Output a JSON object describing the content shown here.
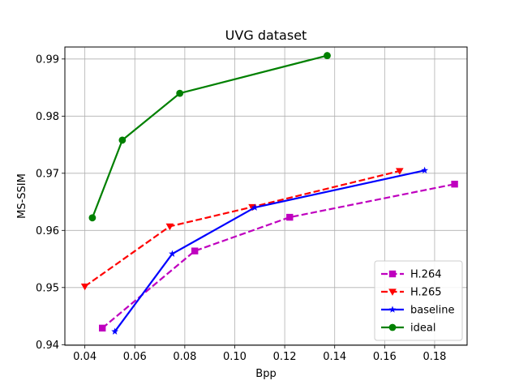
{
  "chart_data": {
    "type": "line",
    "title": "UVG dataset",
    "xlabel": "Bpp",
    "ylabel": "MS-SSIM",
    "xlim": [
      0.032,
      0.193
    ],
    "ylim": [
      0.9399,
      0.9921
    ],
    "xticks": [
      "0.04",
      "0.06",
      "0.08",
      "0.10",
      "0.12",
      "0.14",
      "0.16",
      "0.18"
    ],
    "yticks": [
      "0.94",
      "0.95",
      "0.96",
      "0.97",
      "0.98",
      "0.99"
    ],
    "grid": true,
    "legend_position": "lower-right",
    "series": [
      {
        "name": "H.264",
        "color": "#bf00bf",
        "linestyle": "dashed",
        "marker": "square",
        "x": [
          0.047,
          0.084,
          0.122,
          0.188
        ],
        "y": [
          0.9429,
          0.9564,
          0.9623,
          0.9681
        ]
      },
      {
        "name": "H.265",
        "color": "#ff0000",
        "linestyle": "dashed",
        "marker": "triangle-down",
        "x": [
          0.04,
          0.074,
          0.107,
          0.166
        ],
        "y": [
          0.9502,
          0.9607,
          0.9641,
          0.9704
        ]
      },
      {
        "name": "baseline",
        "color": "#0000ff",
        "linestyle": "solid",
        "marker": "star",
        "x": [
          0.052,
          0.075,
          0.108,
          0.176
        ],
        "y": [
          0.9423,
          0.9559,
          0.964,
          0.9705
        ]
      },
      {
        "name": "ideal",
        "color": "#008000",
        "linestyle": "solid",
        "marker": "circle",
        "x": [
          0.043,
          0.055,
          0.078,
          0.137
        ],
        "y": [
          0.9622,
          0.9758,
          0.984,
          0.9906
        ]
      }
    ]
  }
}
